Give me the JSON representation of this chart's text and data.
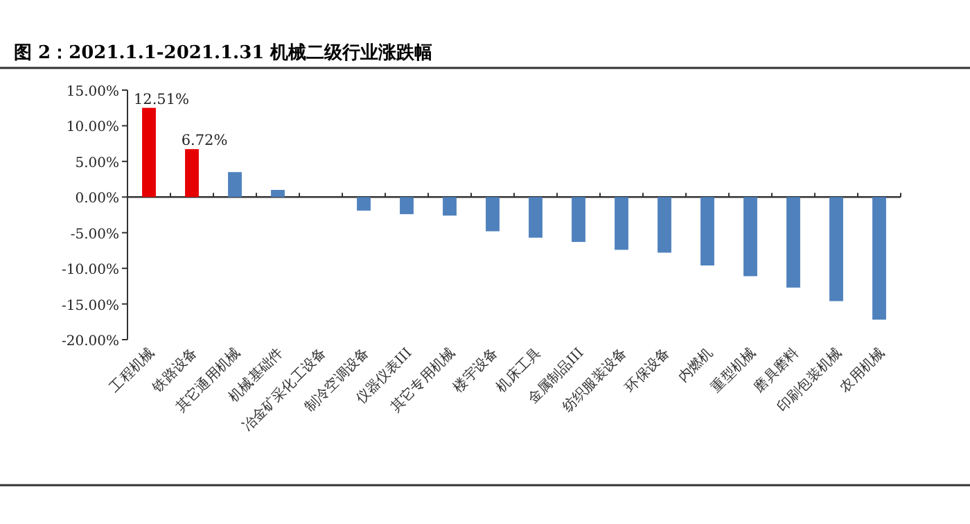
{
  "chart_data": {
    "type": "bar",
    "title": "图 2：2021.1.1-2021.1.31 机械二级行业涨跌幅",
    "categories": [
      "工程机械",
      "铁路设备",
      "其它通用机械",
      "机械基础件",
      "冶金矿采化工设备",
      "制冷空调设备",
      "仪器仪表III",
      "其它专用机械",
      "楼宇设备",
      "机床工具",
      "金属制品III",
      "纺织服装设备",
      "环保设备",
      "内燃机",
      "重型机械",
      "磨具磨料",
      "印刷包装机械",
      "农用机械"
    ],
    "values": [
      12.51,
      6.72,
      3.5,
      1.0,
      0,
      -1.9,
      -2.4,
      -2.6,
      -4.8,
      -5.7,
      -6.3,
      -7.4,
      -7.8,
      -9.6,
      -11.1,
      -12.7,
      -14.6,
      -17.2
    ],
    "colors": [
      "#e60000",
      "#e60000",
      "#4f81bd",
      "#4f81bd",
      "#4f81bd",
      "#4f81bd",
      "#4f81bd",
      "#4f81bd",
      "#4f81bd",
      "#4f81bd",
      "#4f81bd",
      "#4f81bd",
      "#4f81bd",
      "#4f81bd",
      "#4f81bd",
      "#4f81bd",
      "#4f81bd",
      "#4f81bd"
    ],
    "value_labels": [
      "12.51%",
      "6.72%",
      null,
      null,
      null,
      null,
      null,
      null,
      null,
      null,
      null,
      null,
      null,
      null,
      null,
      null,
      null,
      null
    ],
    "ylim": [
      -20,
      15
    ],
    "yticks": [
      {
        "value": -20,
        "label": "-20.00%"
      },
      {
        "value": -15,
        "label": "-15.00%"
      },
      {
        "value": -10,
        "label": "-10.00%"
      },
      {
        "value": -5,
        "label": "-5.00%"
      },
      {
        "value": 0,
        "label": "0.00%"
      },
      {
        "value": 5,
        "label": "5.00%"
      },
      {
        "value": 10,
        "label": "10.00%"
      },
      {
        "value": 15,
        "label": "15.00%"
      }
    ],
    "legend": false
  }
}
